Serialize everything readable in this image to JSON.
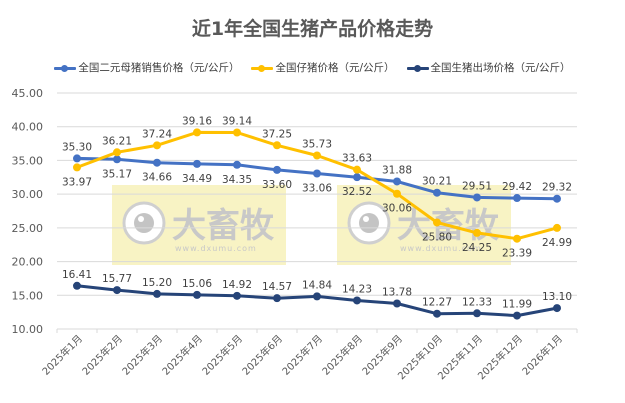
{
  "chart_data": {
    "type": "line",
    "title": "近1年全国生猪产品价格走势",
    "xlabel": "",
    "ylabel": "",
    "ylim": [
      10,
      45
    ],
    "yticks": [
      "10.00",
      "15.00",
      "20.00",
      "25.00",
      "30.00",
      "35.00",
      "40.00",
      "45.00"
    ],
    "grid": true,
    "legend_position": "top",
    "categories": [
      "2025年1月",
      "2025年2月",
      "2025年3月",
      "2025年4月",
      "2025年5月",
      "2025年6月",
      "2025年7月",
      "2025年8月",
      "2025年9月",
      "2025年10月",
      "2025年11月",
      "2025年12月",
      "2026年1月"
    ],
    "series": [
      {
        "name": "全国二元母猪销售价格（元/公斤）",
        "color": "#4472C4",
        "values": [
          35.3,
          35.17,
          34.66,
          34.49,
          34.35,
          33.6,
          33.06,
          32.52,
          31.88,
          30.21,
          29.51,
          29.42,
          29.32
        ]
      },
      {
        "name": "全国仔猪价格（元/公斤）",
        "color": "#FFC000",
        "values": [
          33.97,
          36.21,
          37.24,
          39.16,
          39.14,
          37.25,
          35.73,
          33.63,
          30.06,
          25.8,
          24.25,
          23.39,
          24.99
        ]
      },
      {
        "name": "全国生猪出场价格（元/公斤）",
        "color": "#264478",
        "values": [
          16.41,
          15.77,
          15.2,
          15.06,
          14.92,
          14.57,
          14.84,
          14.23,
          13.78,
          12.27,
          12.33,
          11.99,
          13.1
        ]
      }
    ],
    "watermark": {
      "text": "大畜牧",
      "url_text": "www.dxumu.com"
    }
  }
}
